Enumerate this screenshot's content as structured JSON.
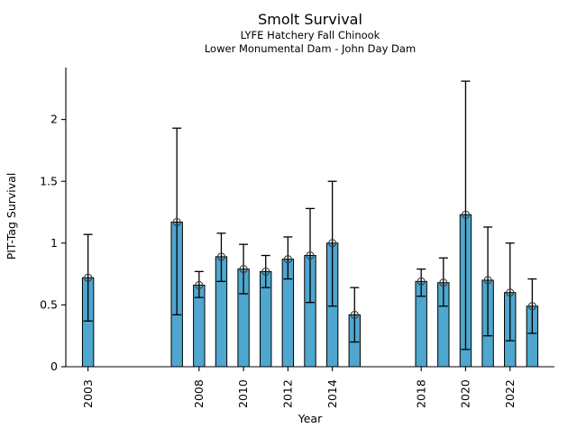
{
  "chart_data": {
    "type": "bar",
    "title": "Smolt Survival",
    "subtitle": [
      "LYFE Hatchery Fall Chinook",
      "Lower Monumental Dam - John Day Dam"
    ],
    "xlabel": "Year",
    "ylabel": "PIT-Tag Survival",
    "categories": [
      2003,
      2007,
      2008,
      2009,
      2010,
      2011,
      2012,
      2013,
      2014,
      2015,
      2018,
      2019,
      2020,
      2021,
      2022,
      2023
    ],
    "values": [
      0.72,
      1.17,
      0.66,
      0.89,
      0.79,
      0.77,
      0.87,
      0.9,
      1.0,
      0.42,
      0.69,
      0.68,
      1.23,
      0.7,
      0.6,
      0.49
    ],
    "error_low": [
      0.37,
      0.42,
      0.56,
      0.69,
      0.59,
      0.64,
      0.71,
      0.52,
      0.49,
      0.2,
      0.57,
      0.49,
      0.14,
      0.25,
      0.21,
      0.27
    ],
    "error_high": [
      1.07,
      1.93,
      0.77,
      1.08,
      0.99,
      0.9,
      1.05,
      1.28,
      1.5,
      0.64,
      0.79,
      0.88,
      2.31,
      1.13,
      1.0,
      0.71
    ],
    "xticks": [
      2003,
      2008,
      2010,
      2012,
      2014,
      2018,
      2020,
      2022
    ],
    "yticks": [
      0,
      0.5,
      1,
      1.5,
      2
    ],
    "ytick_labels": [
      "0",
      "0.5",
      "1",
      "1.5",
      "2"
    ],
    "xlim": [
      2002,
      2024
    ],
    "ylim": [
      0,
      2.42
    ],
    "grid": false,
    "legend": null,
    "marker": "open-circle",
    "bar_color": "#4FA6CE",
    "bar_edge_color": "#000000",
    "error_color": "#000000"
  }
}
